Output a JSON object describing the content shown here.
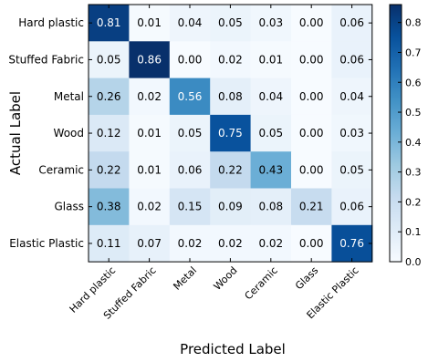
{
  "chart_data": {
    "type": "heatmap",
    "title": "",
    "xlabel": "Predicted Label",
    "ylabel": "Actual Label",
    "row_labels": [
      "Hard plastic",
      "Stuffed Fabric",
      "Metal",
      "Wood",
      "Ceramic",
      "Glass",
      "Elastic Plastic"
    ],
    "col_labels": [
      "Hard plastic",
      "Stuffed Fabric",
      "Metal",
      "Wood",
      "Ceramic",
      "Glass",
      "Elastic Plastic"
    ],
    "values": [
      [
        0.81,
        0.01,
        0.04,
        0.05,
        0.03,
        0.0,
        0.06
      ],
      [
        0.05,
        0.86,
        0.0,
        0.02,
        0.01,
        0.0,
        0.06
      ],
      [
        0.26,
        0.02,
        0.56,
        0.08,
        0.04,
        0.0,
        0.04
      ],
      [
        0.12,
        0.01,
        0.05,
        0.75,
        0.05,
        0.0,
        0.03
      ],
      [
        0.22,
        0.01,
        0.06,
        0.22,
        0.43,
        0.0,
        0.05
      ],
      [
        0.38,
        0.02,
        0.15,
        0.09,
        0.08,
        0.21,
        0.06
      ],
      [
        0.11,
        0.07,
        0.02,
        0.02,
        0.02,
        0.0,
        0.76
      ]
    ],
    "colormap": "Blues",
    "colorbar": {
      "range": [
        0.0,
        0.86
      ],
      "ticks": [
        "0.0",
        "0.1",
        "0.2",
        "0.3",
        "0.4",
        "0.5",
        "0.6",
        "0.7",
        "0.8"
      ],
      "tick_values": [
        0.0,
        0.1,
        0.2,
        0.3,
        0.4,
        0.5,
        0.6,
        0.7,
        0.8
      ]
    }
  }
}
